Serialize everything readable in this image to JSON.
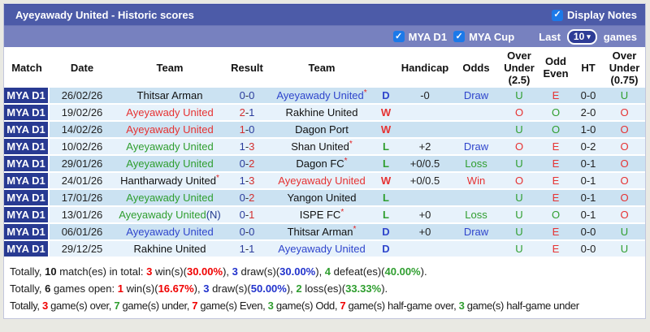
{
  "colors": {
    "title_bar": "#4c5ba8",
    "filter_bar": "#7781bf",
    "league_badge_bg": "#283a92",
    "checkbox_blue": "#1c79e8",
    "row_odd": "#cbe2f2",
    "row_even": "#e7f2fb",
    "win_red": "#e63232",
    "loss_green": "#2f9e2f",
    "draw_blue": "#2f45cc"
  },
  "title_bar": {
    "title": "Ayeyawady United - Historic scores",
    "display_notes": {
      "label": "Display Notes",
      "checked": true,
      "check_glyph": "✓"
    }
  },
  "filter_bar": {
    "leagues": [
      {
        "label": "MYA D1",
        "checked": true
      },
      {
        "label": "MYA Cup",
        "checked": true
      }
    ],
    "check_glyph": "✓",
    "last_label": "Last",
    "last_games_value": "10",
    "chevron_glyph": "▾",
    "games_label": "games"
  },
  "table": {
    "star_glyph": "*",
    "score_separator": "-",
    "columns": [
      {
        "key": "match",
        "lines": [
          "Match"
        ]
      },
      {
        "key": "date",
        "lines": [
          "Date"
        ]
      },
      {
        "key": "home",
        "lines": [
          "Team"
        ]
      },
      {
        "key": "result",
        "lines": [
          "Result"
        ]
      },
      {
        "key": "away",
        "lines": [
          "Team"
        ]
      },
      {
        "key": "wdl",
        "lines": []
      },
      {
        "key": "handicap",
        "lines": [
          "Handicap"
        ]
      },
      {
        "key": "odds",
        "lines": [
          "Odds"
        ]
      },
      {
        "key": "ou25",
        "lines": [
          "Over",
          "Under",
          "(2.5)"
        ]
      },
      {
        "key": "oddEven",
        "lines": [
          "Odd",
          "Even"
        ]
      },
      {
        "key": "ht",
        "lines": [
          "HT"
        ]
      },
      {
        "key": "ou075",
        "lines": [
          "Over",
          "Under",
          "(0.75)"
        ]
      }
    ],
    "rows": [
      {
        "league": "MYA D1",
        "date": "26/02/26",
        "home": {
          "name": "Thitsar Arman",
          "color": "black",
          "star": false,
          "suffix": ""
        },
        "score": {
          "home": "0",
          "away": "0",
          "home_color": "blue",
          "away_color": "blue"
        },
        "away": {
          "name": "Ayeyawady United",
          "color": "blue",
          "star": true,
          "suffix": ""
        },
        "wdl": {
          "text": "D",
          "color": "blue"
        },
        "handicap": "-0",
        "odds": {
          "text": "Draw",
          "color": "blue"
        },
        "ou25": {
          "text": "U",
          "color": "green"
        },
        "odd_even": {
          "text": "E",
          "color": "red"
        },
        "ht": "0-0",
        "ou075": {
          "text": "U",
          "color": "green"
        }
      },
      {
        "league": "MYA D1",
        "date": "19/02/26",
        "home": {
          "name": "Ayeyawady United",
          "color": "red",
          "star": false,
          "suffix": ""
        },
        "score": {
          "home": "2",
          "away": "1",
          "home_color": "red",
          "away_color": "blue"
        },
        "away": {
          "name": "Rakhine United",
          "color": "black",
          "star": false,
          "suffix": ""
        },
        "wdl": {
          "text": "W",
          "color": "red"
        },
        "handicap": "",
        "odds": {
          "text": "",
          "color": ""
        },
        "ou25": {
          "text": "O",
          "color": "red"
        },
        "odd_even": {
          "text": "O",
          "color": "green"
        },
        "ht": "2-0",
        "ou075": {
          "text": "O",
          "color": "red"
        }
      },
      {
        "league": "MYA D1",
        "date": "14/02/26",
        "home": {
          "name": "Ayeyawady United",
          "color": "red",
          "star": false,
          "suffix": ""
        },
        "score": {
          "home": "1",
          "away": "0",
          "home_color": "red",
          "away_color": "blue"
        },
        "away": {
          "name": "Dagon Port",
          "color": "black",
          "star": false,
          "suffix": ""
        },
        "wdl": {
          "text": "W",
          "color": "red"
        },
        "handicap": "",
        "odds": {
          "text": "",
          "color": ""
        },
        "ou25": {
          "text": "U",
          "color": "green"
        },
        "odd_even": {
          "text": "O",
          "color": "green"
        },
        "ht": "1-0",
        "ou075": {
          "text": "O",
          "color": "red"
        }
      },
      {
        "league": "MYA D1",
        "date": "10/02/26",
        "home": {
          "name": "Ayeyawady United",
          "color": "green",
          "star": false,
          "suffix": ""
        },
        "score": {
          "home": "1",
          "away": "3",
          "home_color": "blue",
          "away_color": "red"
        },
        "away": {
          "name": "Shan United",
          "color": "black",
          "star": true,
          "suffix": ""
        },
        "wdl": {
          "text": "L",
          "color": "green"
        },
        "handicap": "+2",
        "odds": {
          "text": "Draw",
          "color": "blue"
        },
        "ou25": {
          "text": "O",
          "color": "red"
        },
        "odd_even": {
          "text": "E",
          "color": "red"
        },
        "ht": "0-2",
        "ou075": {
          "text": "O",
          "color": "red"
        }
      },
      {
        "league": "MYA D1",
        "date": "29/01/26",
        "home": {
          "name": "Ayeyawady United",
          "color": "green",
          "star": false,
          "suffix": ""
        },
        "score": {
          "home": "0",
          "away": "2",
          "home_color": "blue",
          "away_color": "red"
        },
        "away": {
          "name": "Dagon FC",
          "color": "black",
          "star": true,
          "suffix": ""
        },
        "wdl": {
          "text": "L",
          "color": "green"
        },
        "handicap": "+0/0.5",
        "odds": {
          "text": "Loss",
          "color": "green"
        },
        "ou25": {
          "text": "U",
          "color": "green"
        },
        "odd_even": {
          "text": "E",
          "color": "red"
        },
        "ht": "0-1",
        "ou075": {
          "text": "O",
          "color": "red"
        }
      },
      {
        "league": "MYA D1",
        "date": "24/01/26",
        "home": {
          "name": "Hantharwady United",
          "color": "black",
          "star": true,
          "suffix": ""
        },
        "score": {
          "home": "1",
          "away": "3",
          "home_color": "blue",
          "away_color": "red"
        },
        "away": {
          "name": "Ayeyawady United",
          "color": "red",
          "star": false,
          "suffix": ""
        },
        "wdl": {
          "text": "W",
          "color": "red"
        },
        "handicap": "+0/0.5",
        "odds": {
          "text": "Win",
          "color": "red"
        },
        "ou25": {
          "text": "O",
          "color": "red"
        },
        "odd_even": {
          "text": "E",
          "color": "red"
        },
        "ht": "0-1",
        "ou075": {
          "text": "O",
          "color": "red"
        }
      },
      {
        "league": "MYA D1",
        "date": "17/01/26",
        "home": {
          "name": "Ayeyawady United",
          "color": "green",
          "star": false,
          "suffix": ""
        },
        "score": {
          "home": "0",
          "away": "2",
          "home_color": "blue",
          "away_color": "red"
        },
        "away": {
          "name": "Yangon United",
          "color": "black",
          "star": false,
          "suffix": ""
        },
        "wdl": {
          "text": "L",
          "color": "green"
        },
        "handicap": "",
        "odds": {
          "text": "",
          "color": ""
        },
        "ou25": {
          "text": "U",
          "color": "green"
        },
        "odd_even": {
          "text": "E",
          "color": "red"
        },
        "ht": "0-1",
        "ou075": {
          "text": "O",
          "color": "red"
        }
      },
      {
        "league": "MYA D1",
        "date": "13/01/26",
        "home": {
          "name": "Ayeyawady United",
          "color": "green",
          "star": false,
          "suffix": "(N)"
        },
        "score": {
          "home": "0",
          "away": "1",
          "home_color": "blue",
          "away_color": "red"
        },
        "away": {
          "name": "ISPE FC",
          "color": "black",
          "star": true,
          "suffix": ""
        },
        "wdl": {
          "text": "L",
          "color": "green"
        },
        "handicap": "+0",
        "odds": {
          "text": "Loss",
          "color": "green"
        },
        "ou25": {
          "text": "U",
          "color": "green"
        },
        "odd_even": {
          "text": "O",
          "color": "green"
        },
        "ht": "0-1",
        "ou075": {
          "text": "O",
          "color": "red"
        }
      },
      {
        "league": "MYA D1",
        "date": "06/01/26",
        "home": {
          "name": "Ayeyawady United",
          "color": "blue",
          "star": false,
          "suffix": ""
        },
        "score": {
          "home": "0",
          "away": "0",
          "home_color": "blue",
          "away_color": "blue"
        },
        "away": {
          "name": "Thitsar Arman",
          "color": "black",
          "star": true,
          "suffix": ""
        },
        "wdl": {
          "text": "D",
          "color": "blue"
        },
        "handicap": "+0",
        "odds": {
          "text": "Draw",
          "color": "blue"
        },
        "ou25": {
          "text": "U",
          "color": "green"
        },
        "odd_even": {
          "text": "E",
          "color": "red"
        },
        "ht": "0-0",
        "ou075": {
          "text": "U",
          "color": "green"
        }
      },
      {
        "league": "MYA D1",
        "date": "29/12/25",
        "home": {
          "name": "Rakhine United",
          "color": "black",
          "star": false,
          "suffix": ""
        },
        "score": {
          "home": "1",
          "away": "1",
          "home_color": "blue",
          "away_color": "blue"
        },
        "away": {
          "name": "Ayeyawady United",
          "color": "blue",
          "star": false,
          "suffix": ""
        },
        "wdl": {
          "text": "D",
          "color": "blue"
        },
        "handicap": "",
        "odds": {
          "text": "",
          "color": ""
        },
        "ou25": {
          "text": "U",
          "color": "green"
        },
        "odd_even": {
          "text": "E",
          "color": "red"
        },
        "ht": "0-0",
        "ou075": {
          "text": "U",
          "color": "green"
        }
      }
    ]
  },
  "summary": {
    "lines": [
      [
        {
          "t": "Totally, ",
          "c": "k"
        },
        {
          "t": "10",
          "c": "kb"
        },
        {
          "t": " match(es) in total: ",
          "c": "k"
        },
        {
          "t": "3",
          "c": "r"
        },
        {
          "t": " win(s)(",
          "c": "k"
        },
        {
          "t": "30.00%",
          "c": "r"
        },
        {
          "t": "), ",
          "c": "k"
        },
        {
          "t": "3",
          "c": "b"
        },
        {
          "t": " draw(s)(",
          "c": "k"
        },
        {
          "t": "30.00%",
          "c": "b"
        },
        {
          "t": "), ",
          "c": "k"
        },
        {
          "t": "4",
          "c": "g"
        },
        {
          "t": " defeat(es)(",
          "c": "k"
        },
        {
          "t": "40.00%",
          "c": "g"
        },
        {
          "t": ").",
          "c": "k"
        }
      ],
      [
        {
          "t": "Totally, ",
          "c": "k"
        },
        {
          "t": "6",
          "c": "kb"
        },
        {
          "t": " games open: ",
          "c": "k"
        },
        {
          "t": "1",
          "c": "r"
        },
        {
          "t": " win(s)(",
          "c": "k"
        },
        {
          "t": "16.67%",
          "c": "r"
        },
        {
          "t": "), ",
          "c": "k"
        },
        {
          "t": "3",
          "c": "b"
        },
        {
          "t": " draw(s)(",
          "c": "k"
        },
        {
          "t": "50.00%",
          "c": "b"
        },
        {
          "t": "), ",
          "c": "k"
        },
        {
          "t": "2",
          "c": "g"
        },
        {
          "t": " loss(es)(",
          "c": "k"
        },
        {
          "t": "33.33%",
          "c": "g"
        },
        {
          "t": ").",
          "c": "k"
        }
      ],
      [
        {
          "t": "Totally, ",
          "c": "k"
        },
        {
          "t": "3",
          "c": "r"
        },
        {
          "t": " game(s) over, ",
          "c": "k"
        },
        {
          "t": "7",
          "c": "g"
        },
        {
          "t": " game(s) under, ",
          "c": "k"
        },
        {
          "t": "7",
          "c": "r"
        },
        {
          "t": " game(s) Even, ",
          "c": "k"
        },
        {
          "t": "3",
          "c": "g"
        },
        {
          "t": " game(s) Odd, ",
          "c": "k"
        },
        {
          "t": "7",
          "c": "r"
        },
        {
          "t": " game(s) half-game over, ",
          "c": "k"
        },
        {
          "t": "3",
          "c": "g"
        },
        {
          "t": " game(s) half-game under",
          "c": "k"
        }
      ]
    ]
  }
}
